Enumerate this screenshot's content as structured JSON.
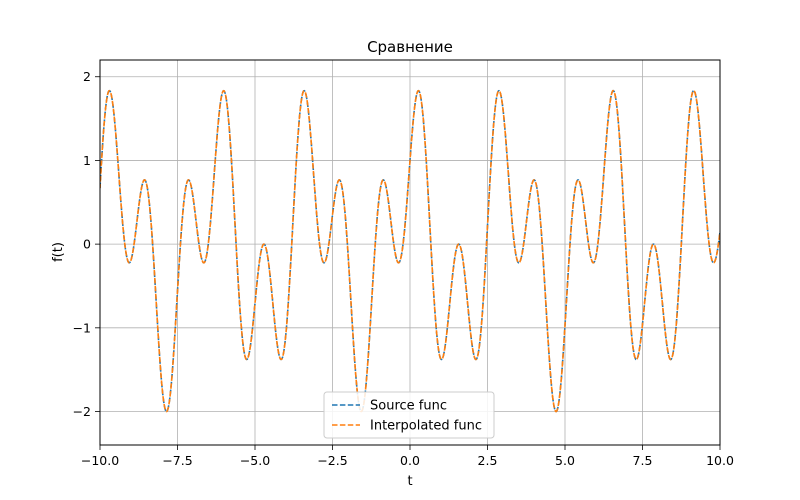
{
  "chart_data": {
    "type": "line",
    "title": "Сравнение",
    "xlabel": "t",
    "ylabel": "f(t)",
    "xlim": [
      -10,
      10
    ],
    "ylim": [
      -2.4,
      2.2
    ],
    "x_ticks": [
      -10,
      -7.5,
      -5,
      -2.5,
      0,
      2.5,
      5,
      7.5,
      10
    ],
    "x_tick_labels": [
      "−10.0",
      "−7.5",
      "−5.0",
      "−2.5",
      "0.0",
      "2.5",
      "5.0",
      "7.5",
      "10.0"
    ],
    "y_ticks": [
      -2,
      -1,
      0,
      1,
      2
    ],
    "y_tick_labels": [
      "−2",
      "−1",
      "0",
      "1",
      "2"
    ],
    "grid": true,
    "legend_position": "bottom-center",
    "series": [
      {
        "name": "Source func",
        "color": "#1f77b4",
        "style": "dashed",
        "function": "cos(2t)+sin(5t)",
        "sample_range": [
          -10,
          10
        ],
        "samples": 2001
      },
      {
        "name": "Interpolated func",
        "color": "#ff7f0e",
        "style": "dashed",
        "function": "cos(2t)+sin(5t)",
        "sample_range": [
          -10,
          10
        ],
        "samples": 2001
      }
    ]
  }
}
